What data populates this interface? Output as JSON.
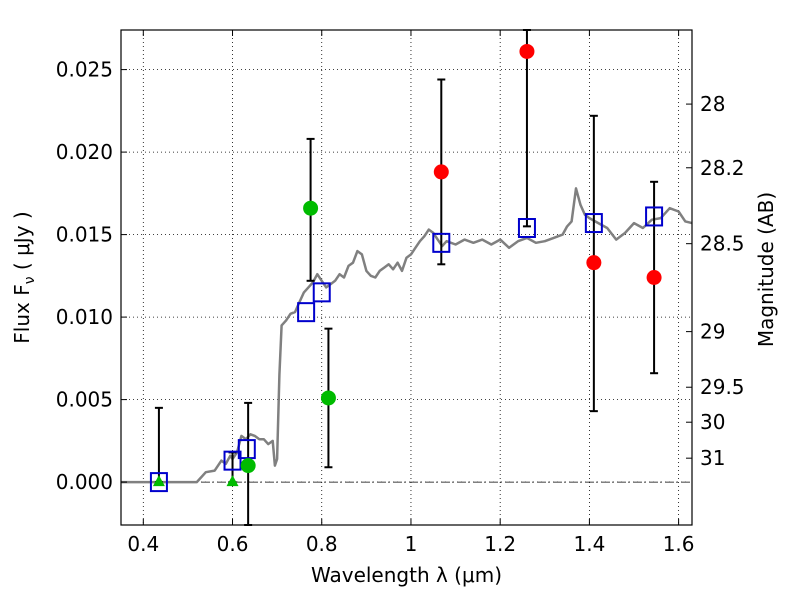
{
  "chart_data": {
    "type": "scatter",
    "xlabel": "Wavelength  λ (μm)",
    "ylabel": "Flux  F",
    "ylabel_sub": "ν",
    "ylabel_unit": "  ( μJy )",
    "y2label": "Magnitude (AB)",
    "xlim": [
      0.35,
      1.63
    ],
    "ylim": [
      -0.0026,
      0.0274
    ],
    "grid": true,
    "x_ticks": [
      0.4,
      0.6,
      0.8,
      1.0,
      1.2,
      1.4,
      1.6
    ],
    "x_tick_labels": [
      "0.4",
      "0.6",
      "0.8",
      "1",
      "1.2",
      "1.4",
      "1.6"
    ],
    "y_ticks": [
      0.0,
      0.005,
      0.01,
      0.015,
      0.02,
      0.025
    ],
    "y_tick_labels": [
      "0.000",
      "0.005",
      "0.010",
      "0.015",
      "0.020",
      "0.025"
    ],
    "y2_ticks": [
      {
        "label": "28",
        "flux": 0.02291
      },
      {
        "label": "28.2",
        "flux": 0.01905
      },
      {
        "label": "28.5",
        "flux": 0.01445
      },
      {
        "label": "29",
        "flux": 0.00912
      },
      {
        "label": "29.5",
        "flux": 0.00575
      },
      {
        "label": "30",
        "flux": 0.00363
      },
      {
        "label": "31",
        "flux": 0.00145
      }
    ],
    "colors": {
      "model": "#808080",
      "template_box": "#0000cc",
      "red": "#ff0000",
      "green": "#00bb00",
      "errorbar": "#000000",
      "zero_line": "#000000"
    },
    "series": [
      {
        "marker": "line",
        "color": "#808080",
        "points": [
          [
            0.35,
            0.0
          ],
          [
            0.52,
            0.0
          ],
          [
            0.54,
            0.0006
          ],
          [
            0.56,
            0.0007
          ],
          [
            0.575,
            0.0013
          ],
          [
            0.585,
            0.0011
          ],
          [
            0.595,
            0.0016
          ],
          [
            0.6,
            0.0014
          ],
          [
            0.61,
            0.0018
          ],
          [
            0.62,
            0.0028
          ],
          [
            0.63,
            0.0026
          ],
          [
            0.64,
            0.0029
          ],
          [
            0.65,
            0.0028
          ],
          [
            0.66,
            0.0026
          ],
          [
            0.67,
            0.0026
          ],
          [
            0.68,
            0.0023
          ],
          [
            0.69,
            0.0025
          ],
          [
            0.695,
            0.001
          ],
          [
            0.7,
            0.0014
          ],
          [
            0.705,
            0.0065
          ],
          [
            0.71,
            0.0095
          ],
          [
            0.72,
            0.0098
          ],
          [
            0.73,
            0.0102
          ],
          [
            0.74,
            0.0103
          ],
          [
            0.75,
            0.0109
          ],
          [
            0.76,
            0.0115
          ],
          [
            0.77,
            0.0118
          ],
          [
            0.78,
            0.0121
          ],
          [
            0.79,
            0.0126
          ],
          [
            0.8,
            0.0122
          ],
          [
            0.81,
            0.0118
          ],
          [
            0.82,
            0.012
          ],
          [
            0.83,
            0.0122
          ],
          [
            0.84,
            0.0126
          ],
          [
            0.85,
            0.0124
          ],
          [
            0.86,
            0.0131
          ],
          [
            0.87,
            0.0133
          ],
          [
            0.88,
            0.014
          ],
          [
            0.89,
            0.0138
          ],
          [
            0.9,
            0.0128
          ],
          [
            0.91,
            0.0125
          ],
          [
            0.92,
            0.0124
          ],
          [
            0.93,
            0.0128
          ],
          [
            0.94,
            0.013
          ],
          [
            0.95,
            0.0132
          ],
          [
            0.96,
            0.0129
          ],
          [
            0.97,
            0.0133
          ],
          [
            0.98,
            0.0128
          ],
          [
            0.99,
            0.0136
          ],
          [
            1.0,
            0.0138
          ],
          [
            1.01,
            0.0142
          ],
          [
            1.02,
            0.0146
          ],
          [
            1.03,
            0.0149
          ],
          [
            1.04,
            0.0153
          ],
          [
            1.05,
            0.0151
          ],
          [
            1.06,
            0.0147
          ],
          [
            1.07,
            0.0143
          ],
          [
            1.08,
            0.0146
          ],
          [
            1.1,
            0.0144
          ],
          [
            1.12,
            0.0147
          ],
          [
            1.14,
            0.0145
          ],
          [
            1.16,
            0.0147
          ],
          [
            1.18,
            0.0144
          ],
          [
            1.2,
            0.0147
          ],
          [
            1.22,
            0.0142
          ],
          [
            1.24,
            0.0146
          ],
          [
            1.26,
            0.0148
          ],
          [
            1.28,
            0.0145
          ],
          [
            1.3,
            0.0146
          ],
          [
            1.32,
            0.0148
          ],
          [
            1.34,
            0.015
          ],
          [
            1.35,
            0.0155
          ],
          [
            1.36,
            0.0158
          ],
          [
            1.37,
            0.0178
          ],
          [
            1.38,
            0.0168
          ],
          [
            1.39,
            0.0162
          ],
          [
            1.4,
            0.016
          ],
          [
            1.42,
            0.0157
          ],
          [
            1.44,
            0.0154
          ],
          [
            1.46,
            0.0147
          ],
          [
            1.48,
            0.0151
          ],
          [
            1.5,
            0.0157
          ],
          [
            1.52,
            0.0154
          ],
          [
            1.54,
            0.0159
          ],
          [
            1.56,
            0.016
          ],
          [
            1.58,
            0.0166
          ],
          [
            1.6,
            0.0164
          ],
          [
            1.615,
            0.0158
          ],
          [
            1.63,
            0.0157
          ]
        ]
      },
      {
        "marker": "open-square",
        "color": "#0000cc",
        "points": [
          [
            0.435,
            0.0
          ],
          [
            0.6,
            0.0013
          ],
          [
            0.632,
            0.002
          ],
          [
            0.765,
            0.0103
          ],
          [
            0.8,
            0.0115
          ],
          [
            1.068,
            0.0145
          ],
          [
            1.26,
            0.0154
          ],
          [
            1.41,
            0.0157
          ],
          [
            1.545,
            0.0161
          ]
        ]
      },
      {
        "marker": "circle",
        "color": "#ff0000",
        "points": [
          [
            1.068,
            0.0188
          ],
          [
            1.26,
            0.0261
          ],
          [
            1.41,
            0.0133
          ],
          [
            1.545,
            0.0124
          ]
        ]
      },
      {
        "marker": "circle",
        "color": "#00bb00",
        "points": [
          [
            0.635,
            0.001
          ],
          [
            0.775,
            0.0166
          ],
          [
            0.815,
            0.0051
          ]
        ]
      },
      {
        "marker": "triangle",
        "color": "#00bb00",
        "points": [
          [
            0.435,
            0.0
          ],
          [
            0.6,
            0.0
          ]
        ]
      }
    ],
    "error_bars": [
      {
        "x": 0.435,
        "low": 0.0,
        "high": 0.0045
      },
      {
        "x": 0.6,
        "low": 0.0,
        "high": 0.0018
      },
      {
        "x": 0.635,
        "low": -0.0026,
        "high": 0.0048
      },
      {
        "x": 0.775,
        "low": 0.0122,
        "high": 0.0208
      },
      {
        "x": 0.815,
        "low": 0.0009,
        "high": 0.0093
      },
      {
        "x": 1.068,
        "low": 0.0132,
        "high": 0.0244
      },
      {
        "x": 1.26,
        "low": 0.0155,
        "high": 0.0274
      },
      {
        "x": 1.41,
        "low": 0.0043,
        "high": 0.0222
      },
      {
        "x": 1.545,
        "low": 0.0066,
        "high": 0.0182
      }
    ]
  }
}
